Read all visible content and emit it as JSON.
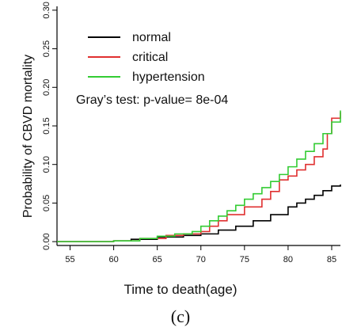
{
  "chart_data": {
    "type": "line",
    "title": "",
    "xlabel": "Time to death(age)",
    "ylabel": "Probability of CBVD mortality",
    "xlim": [
      53.5,
      86
    ],
    "ylim": [
      -0.005,
      0.305
    ],
    "xticks": [
      55,
      60,
      65,
      70,
      75,
      80,
      85
    ],
    "yticks": [
      0.0,
      0.05,
      0.1,
      0.15,
      0.2,
      0.25,
      0.3
    ],
    "ytick_labels": [
      "0.00",
      "0.05",
      "0.10",
      "0.15",
      "0.20",
      "0.25",
      "0.30"
    ],
    "grid": false,
    "legend_position": "top-left",
    "series": [
      {
        "name": "normal",
        "color": "#000000",
        "x": [
          53.5,
          60,
          62,
          65,
          68,
          70,
          72,
          74,
          76,
          78,
          80,
          81,
          82,
          83,
          84,
          85,
          86
        ],
        "y": [
          0,
          0.001,
          0.003,
          0.006,
          0.008,
          0.01,
          0.015,
          0.02,
          0.027,
          0.035,
          0.045,
          0.05,
          0.055,
          0.06,
          0.066,
          0.072,
          0.074
        ]
      },
      {
        "name": "critical",
        "color": "#e03030",
        "x": [
          53.5,
          60,
          63,
          66,
          68,
          70,
          71,
          72,
          73,
          75,
          77,
          78,
          79,
          80,
          81,
          82,
          83,
          84,
          84.5,
          85,
          86
        ],
        "y": [
          0,
          0.001,
          0.004,
          0.008,
          0.01,
          0.013,
          0.02,
          0.027,
          0.035,
          0.045,
          0.055,
          0.065,
          0.08,
          0.085,
          0.093,
          0.1,
          0.11,
          0.12,
          0.14,
          0.16,
          0.168
        ]
      },
      {
        "name": "hypertension",
        "color": "#33cc33",
        "x": [
          53.5,
          60,
          63,
          65,
          67,
          69,
          70,
          71,
          72,
          73,
          74,
          75,
          76,
          77,
          78,
          79,
          80,
          81,
          82,
          83,
          84,
          85,
          86
        ],
        "y": [
          0,
          0.001,
          0.004,
          0.007,
          0.01,
          0.013,
          0.02,
          0.027,
          0.033,
          0.04,
          0.047,
          0.055,
          0.062,
          0.07,
          0.078,
          0.087,
          0.097,
          0.107,
          0.117,
          0.127,
          0.14,
          0.155,
          0.17
        ]
      }
    ],
    "annotation": "Gray’s test: p-value= 8e-04"
  },
  "caption": "(c)"
}
